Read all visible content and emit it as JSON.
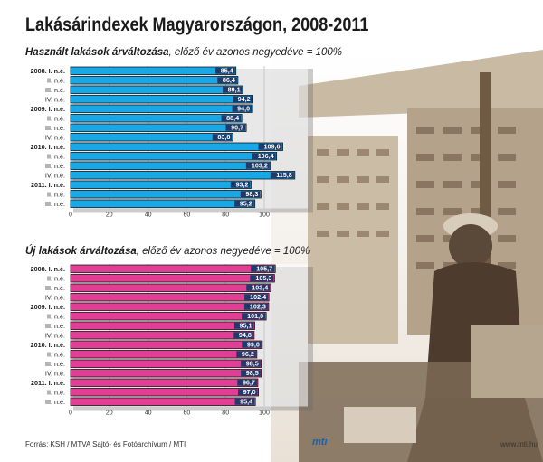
{
  "title": "Lakásárindexek Magyarországon, 2008-2011",
  "colors": {
    "used_bar": "#18a8e8",
    "new_bar": "#e23e95",
    "bar_outline": "#000000",
    "label_box": "#1f3a6b",
    "photo_tone": "#a89276"
  },
  "chart_data": [
    {
      "type": "bar",
      "orientation": "horizontal",
      "title_emphasis": "Használt lakások árváltozása",
      "title_rest": ", előző év azonos negyedéve = 100%",
      "categories": [
        "2008. I. n.é.",
        "II. n.é.",
        "III. n.é.",
        "IV. n.é.",
        "2009. I. n.é.",
        "II. n.é.",
        "III. n.é.",
        "IV. n.é.",
        "2010. I. n.é.",
        "II. n.é.",
        "III. n.é.",
        "IV. n.é.",
        "2011. I. n.é.",
        "II. n.é.",
        "III. n.é."
      ],
      "values": [
        85.4,
        86.4,
        89.1,
        94.2,
        94.0,
        88.4,
        90.7,
        83.8,
        109.6,
        106.4,
        103.2,
        115.8,
        93.2,
        98.3,
        95.2
      ],
      "value_labels": [
        "85,4",
        "86,4",
        "89,1",
        "94,2",
        "94,0",
        "88,4",
        "90,7",
        "83,8",
        "109,6",
        "106,4",
        "103,2",
        "115,8",
        "93,2",
        "98,3",
        "95,2"
      ],
      "xlim": [
        0,
        120
      ],
      "x_ticks": [
        "0",
        "20",
        "40",
        "60",
        "80",
        "100"
      ],
      "x_tick_values": [
        0,
        20,
        40,
        60,
        80,
        100
      ],
      "grid": true
    },
    {
      "type": "bar",
      "orientation": "horizontal",
      "title_emphasis": "Új lakások árváltozása",
      "title_rest": ", előző év azonos negyedéve = 100%",
      "categories": [
        "2008. I. n.é.",
        "II. n.é.",
        "III. n.é.",
        "IV. n.é.",
        "2009. I. n.é.",
        "II. n.é.",
        "III. n.é.",
        "IV. n.é.",
        "2010. I. n.é.",
        "II. n.é.",
        "III. n.é.",
        "IV. n.é.",
        "2011. I. n.é.",
        "II. n.é.",
        "III. n.é."
      ],
      "values": [
        105.7,
        105.3,
        103.4,
        102.4,
        102.3,
        101.0,
        95.1,
        94.8,
        99.0,
        96.2,
        98.5,
        98.5,
        96.7,
        97.0,
        95.4
      ],
      "value_labels": [
        "105,7",
        "105,3",
        "103,4",
        "102,4",
        "102,3",
        "101,0",
        "95,1",
        "94,8",
        "99,0",
        "96,2",
        "98,5",
        "98,5",
        "96,7",
        "97,0",
        "95,4"
      ],
      "xlim": [
        0,
        120
      ],
      "x_ticks": [
        "0",
        "20",
        "40",
        "60",
        "80",
        "100"
      ],
      "x_tick_values": [
        0,
        20,
        40,
        60,
        80,
        100
      ],
      "grid": true
    }
  ],
  "footer": {
    "source": "Forrás: KSH / MTVA Sajtó- és Fotóarchívum / MTI",
    "logo": "mti",
    "url": "www.mti.hu"
  }
}
